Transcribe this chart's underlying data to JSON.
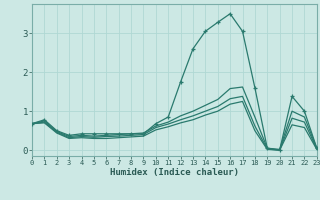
{
  "xlabel": "Humidex (Indice chaleur)",
  "background_color": "#cce8e4",
  "grid_color": "#b0d8d4",
  "line_color": "#2a7a6e",
  "x_ticks": [
    0,
    1,
    2,
    3,
    4,
    5,
    6,
    7,
    8,
    9,
    10,
    11,
    12,
    13,
    14,
    15,
    16,
    17,
    18,
    19,
    20,
    21,
    22,
    23
  ],
  "y_ticks": [
    0,
    1,
    2,
    3
  ],
  "xlim": [
    0,
    23
  ],
  "ylim": [
    -0.15,
    3.75
  ],
  "series": [
    {
      "x": [
        0,
        1,
        2,
        3,
        4,
        5,
        6,
        7,
        8,
        9,
        10,
        11,
        12,
        13,
        14,
        15,
        16,
        17,
        18,
        19,
        20,
        21,
        22,
        23
      ],
      "y": [
        0.68,
        0.78,
        0.5,
        0.38,
        0.42,
        0.42,
        0.42,
        0.42,
        0.42,
        0.42,
        0.68,
        0.85,
        1.75,
        2.6,
        3.05,
        3.28,
        3.5,
        3.05,
        1.6,
        0.05,
        0.0,
        1.38,
        1.0,
        0.05
      ],
      "marker": true
    },
    {
      "x": [
        0,
        1,
        2,
        3,
        4,
        5,
        6,
        7,
        8,
        9,
        10,
        11,
        12,
        13,
        14,
        15,
        16,
        17,
        18,
        19,
        20,
        21,
        22,
        23
      ],
      "y": [
        0.68,
        0.75,
        0.48,
        0.35,
        0.38,
        0.36,
        0.38,
        0.4,
        0.42,
        0.44,
        0.62,
        0.72,
        0.88,
        1.0,
        1.15,
        1.3,
        1.58,
        1.62,
        0.85,
        0.05,
        0.02,
        1.0,
        0.85,
        0.05
      ],
      "marker": false
    },
    {
      "x": [
        0,
        1,
        2,
        3,
        4,
        5,
        6,
        7,
        8,
        9,
        10,
        11,
        12,
        13,
        14,
        15,
        16,
        17,
        18,
        19,
        20,
        21,
        22,
        23
      ],
      "y": [
        0.68,
        0.72,
        0.46,
        0.32,
        0.35,
        0.33,
        0.35,
        0.36,
        0.38,
        0.4,
        0.58,
        0.67,
        0.78,
        0.88,
        1.0,
        1.12,
        1.32,
        1.38,
        0.62,
        0.03,
        0.0,
        0.82,
        0.72,
        0.03
      ],
      "marker": false
    },
    {
      "x": [
        0,
        1,
        2,
        3,
        4,
        5,
        6,
        7,
        8,
        9,
        10,
        11,
        12,
        13,
        14,
        15,
        16,
        17,
        18,
        19,
        20,
        21,
        22,
        23
      ],
      "y": [
        0.68,
        0.7,
        0.44,
        0.3,
        0.32,
        0.3,
        0.3,
        0.32,
        0.34,
        0.36,
        0.52,
        0.6,
        0.7,
        0.78,
        0.9,
        1.0,
        1.18,
        1.25,
        0.5,
        0.02,
        0.0,
        0.65,
        0.58,
        0.02
      ],
      "marker": false
    }
  ]
}
